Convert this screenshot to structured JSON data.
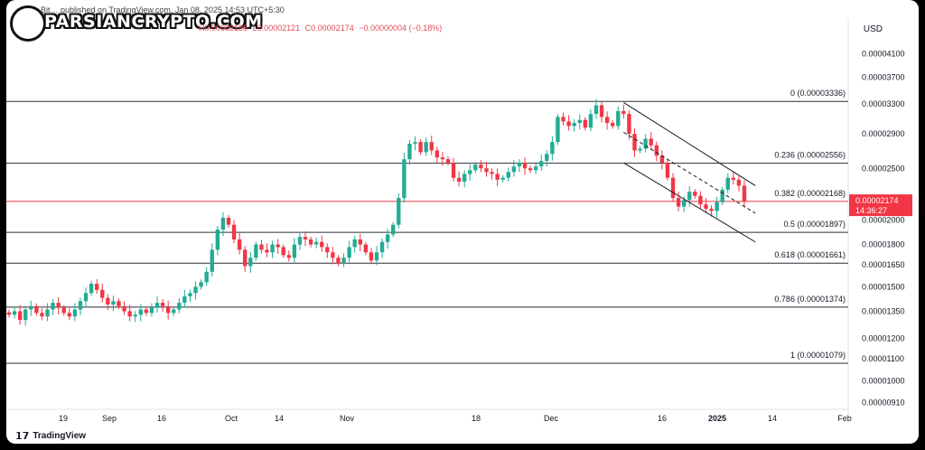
{
  "header": {
    "publisher": "Bit… published on TradingView.com, Jan 08, 2025 14:53 UTC+5:30",
    "watermark": "PARSIANCRYPTO.COM",
    "ohlc": {
      "o": "O0.00002198",
      "h": "H0.00002198",
      "l": "L0.00002121",
      "c": "C0.00002174",
      "change": "−0.00000004 (−0.18%)"
    },
    "currency": "USD"
  },
  "footer": {
    "brand": "TradingView"
  },
  "price_tag": {
    "value": "0.00002174",
    "countdown": "14:36:27",
    "color": "#f23645"
  },
  "colors": {
    "up": "#22ab94",
    "down": "#f23645",
    "line": "#131722",
    "grid": "#f0f3fa"
  },
  "chart_data": {
    "type": "candlestick",
    "y_scale": "log",
    "y_ticks": [
      "0.00004100",
      "0.00003700",
      "0.00003300",
      "0.00002900",
      "0.00002500",
      "0.00002000",
      "0.00001800",
      "0.00001650",
      "0.00001500",
      "0.00001350",
      "0.00001200",
      "0.00001100",
      "0.00001000",
      "0.00000910"
    ],
    "x_ticks": [
      "19",
      "Sep",
      "16",
      "Oct",
      "14",
      "Nov",
      "18",
      "Dec",
      "16",
      "2025",
      "14",
      "Feb"
    ],
    "fib_levels": [
      {
        "label": "0 (0.00003336)",
        "value": 3.336e-05
      },
      {
        "label": "0.236 (0.00002556)",
        "value": 2.556e-05
      },
      {
        "label": "0.382 (0.00002168)",
        "value": 2.168e-05
      },
      {
        "label": "0.5 (0.00001897)",
        "value": 1.897e-05
      },
      {
        "label": "0.618 (0.00001661)",
        "value": 1.661e-05
      },
      {
        "label": "0.786 (0.00001374)",
        "value": 1.374e-05
      },
      {
        "label": "1 (0.00001079)",
        "value": 1.079e-05
      }
    ],
    "last_close": 2.174e-05,
    "closes": [
      1.33e-05,
      1.35e-05,
      1.3e-05,
      1.36e-05,
      1.38e-05,
      1.34e-05,
      1.32e-05,
      1.36e-05,
      1.4e-05,
      1.37e-05,
      1.34e-05,
      1.32e-05,
      1.36e-05,
      1.41e-05,
      1.46e-05,
      1.52e-05,
      1.48e-05,
      1.43e-05,
      1.39e-05,
      1.41e-05,
      1.38e-05,
      1.35e-05,
      1.32e-05,
      1.33e-05,
      1.36e-05,
      1.34e-05,
      1.37e-05,
      1.4e-05,
      1.38e-05,
      1.34e-05,
      1.36e-05,
      1.4e-05,
      1.44e-05,
      1.46e-05,
      1.5e-05,
      1.53e-05,
      1.6e-05,
      1.76e-05,
      1.92e-05,
      2.02e-05,
      1.96e-05,
      1.84e-05,
      1.76e-05,
      1.64e-05,
      1.7e-05,
      1.8e-05,
      1.76e-05,
      1.74e-05,
      1.8e-05,
      1.78e-05,
      1.72e-05,
      1.7e-05,
      1.8e-05,
      1.86e-05,
      1.84e-05,
      1.8e-05,
      1.82e-05,
      1.78e-05,
      1.74e-05,
      1.7e-05,
      1.66e-05,
      1.7e-05,
      1.78e-05,
      1.84e-05,
      1.8e-05,
      1.74e-05,
      1.68e-05,
      1.74e-05,
      1.82e-05,
      1.88e-05,
      1.96e-05,
      2.2e-05,
      2.6e-05,
      2.78e-05,
      2.8e-05,
      2.68e-05,
      2.8e-05,
      2.7e-05,
      2.62e-05,
      2.6e-05,
      2.56e-05,
      2.4e-05,
      2.36e-05,
      2.44e-05,
      2.48e-05,
      2.54e-05,
      2.5e-05,
      2.46e-05,
      2.44e-05,
      2.38e-05,
      2.4e-05,
      2.46e-05,
      2.52e-05,
      2.56e-05,
      2.5e-05,
      2.48e-05,
      2.52e-05,
      2.58e-05,
      2.66e-05,
      2.8e-05,
      3.12e-05,
      3.06e-05,
      3e-05,
      3.04e-05,
      3.08e-05,
      2.98e-05,
      3.16e-05,
      3.28e-05,
      3.12e-05,
      3.04e-05,
      3e-05,
      3.2e-05,
      3.16e-05,
      2.9e-05,
      2.7e-05,
      2.72e-05,
      2.84e-05,
      2.76e-05,
      2.64e-05,
      2.56e-05,
      2.4e-05,
      2.2e-05,
      2.12e-05,
      2.18e-05,
      2.26e-05,
      2.22e-05,
      2.14e-05,
      2.1e-05,
      2.08e-05,
      2.16e-05,
      2.28e-05,
      2.4e-05,
      2.38e-05,
      2.32e-05,
      2.17e-05
    ]
  }
}
